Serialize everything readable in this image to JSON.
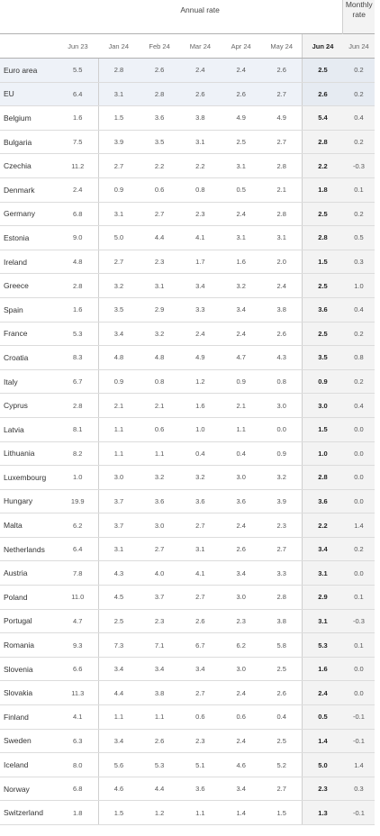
{
  "header": {
    "annual_rate": "Annual rate",
    "monthly_rate": "Monthly rate",
    "columns": [
      "Jun 23",
      "Jan 24",
      "Feb 24",
      "Mar 24",
      "Apr 24",
      "May 24",
      "Jun 24",
      "Jun 24"
    ]
  },
  "rows": [
    {
      "name": "Euro area",
      "vals": [
        "5.5",
        "2.8",
        "2.6",
        "2.4",
        "2.4",
        "2.6",
        "2.5",
        "0.2"
      ]
    },
    {
      "name": "EU",
      "vals": [
        "6.4",
        "3.1",
        "2.8",
        "2.6",
        "2.6",
        "2.7",
        "2.6",
        "0.2"
      ]
    },
    {
      "name": "Belgium",
      "vals": [
        "1.6",
        "1.5",
        "3.6",
        "3.8",
        "4.9",
        "4.9",
        "5.4",
        "0.4"
      ]
    },
    {
      "name": "Bulgaria",
      "vals": [
        "7.5",
        "3.9",
        "3.5",
        "3.1",
        "2.5",
        "2.7",
        "2.8",
        "0.2"
      ]
    },
    {
      "name": "Czechia",
      "vals": [
        "11.2",
        "2.7",
        "2.2",
        "2.2",
        "3.1",
        "2.8",
        "2.2",
        "-0.3"
      ]
    },
    {
      "name": "Denmark",
      "vals": [
        "2.4",
        "0.9",
        "0.6",
        "0.8",
        "0.5",
        "2.1",
        "1.8",
        "0.1"
      ]
    },
    {
      "name": "Germany",
      "vals": [
        "6.8",
        "3.1",
        "2.7",
        "2.3",
        "2.4",
        "2.8",
        "2.5",
        "0.2"
      ]
    },
    {
      "name": "Estonia",
      "vals": [
        "9.0",
        "5.0",
        "4.4",
        "4.1",
        "3.1",
        "3.1",
        "2.8",
        "0.5"
      ]
    },
    {
      "name": "Ireland",
      "vals": [
        "4.8",
        "2.7",
        "2.3",
        "1.7",
        "1.6",
        "2.0",
        "1.5",
        "0.3"
      ]
    },
    {
      "name": "Greece",
      "vals": [
        "2.8",
        "3.2",
        "3.1",
        "3.4",
        "3.2",
        "2.4",
        "2.5",
        "1.0"
      ]
    },
    {
      "name": "Spain",
      "vals": [
        "1.6",
        "3.5",
        "2.9",
        "3.3",
        "3.4",
        "3.8",
        "3.6",
        "0.4"
      ]
    },
    {
      "name": "France",
      "vals": [
        "5.3",
        "3.4",
        "3.2",
        "2.4",
        "2.4",
        "2.6",
        "2.5",
        "0.2"
      ]
    },
    {
      "name": "Croatia",
      "vals": [
        "8.3",
        "4.8",
        "4.8",
        "4.9",
        "4.7",
        "4.3",
        "3.5",
        "0.8"
      ]
    },
    {
      "name": "Italy",
      "vals": [
        "6.7",
        "0.9",
        "0.8",
        "1.2",
        "0.9",
        "0.8",
        "0.9",
        "0.2"
      ]
    },
    {
      "name": "Cyprus",
      "vals": [
        "2.8",
        "2.1",
        "2.1",
        "1.6",
        "2.1",
        "3.0",
        "3.0",
        "0.4"
      ]
    },
    {
      "name": "Latvia",
      "vals": [
        "8.1",
        "1.1",
        "0.6",
        "1.0",
        "1.1",
        "0.0",
        "1.5",
        "0.0"
      ]
    },
    {
      "name": "Lithuania",
      "vals": [
        "8.2",
        "1.1",
        "1.1",
        "0.4",
        "0.4",
        "0.9",
        "1.0",
        "0.0"
      ]
    },
    {
      "name": "Luxembourg",
      "vals": [
        "1.0",
        "3.0",
        "3.2",
        "3.2",
        "3.0",
        "3.2",
        "2.8",
        "0.0"
      ]
    },
    {
      "name": "Hungary",
      "vals": [
        "19.9",
        "3.7",
        "3.6",
        "3.6",
        "3.6",
        "3.9",
        "3.6",
        "0.0"
      ]
    },
    {
      "name": "Malta",
      "vals": [
        "6.2",
        "3.7",
        "3.0",
        "2.7",
        "2.4",
        "2.3",
        "2.2",
        "1.4"
      ]
    },
    {
      "name": "Netherlands",
      "vals": [
        "6.4",
        "3.1",
        "2.7",
        "3.1",
        "2.6",
        "2.7",
        "3.4",
        "0.2"
      ]
    },
    {
      "name": "Austria",
      "vals": [
        "7.8",
        "4.3",
        "4.0",
        "4.1",
        "3.4",
        "3.3",
        "3.1",
        "0.0"
      ]
    },
    {
      "name": "Poland",
      "vals": [
        "11.0",
        "4.5",
        "3.7",
        "2.7",
        "3.0",
        "2.8",
        "2.9",
        "0.1"
      ]
    },
    {
      "name": "Portugal",
      "vals": [
        "4.7",
        "2.5",
        "2.3",
        "2.6",
        "2.3",
        "3.8",
        "3.1",
        "-0.3"
      ]
    },
    {
      "name": "Romania",
      "vals": [
        "9.3",
        "7.3",
        "7.1",
        "6.7",
        "6.2",
        "5.8",
        "5.3",
        "0.1"
      ]
    },
    {
      "name": "Slovenia",
      "vals": [
        "6.6",
        "3.4",
        "3.4",
        "3.4",
        "3.0",
        "2.5",
        "1.6",
        "0.0"
      ]
    },
    {
      "name": "Slovakia",
      "vals": [
        "11.3",
        "4.4",
        "3.8",
        "2.7",
        "2.4",
        "2.6",
        "2.4",
        "0.0"
      ]
    },
    {
      "name": "Finland",
      "vals": [
        "4.1",
        "1.1",
        "1.1",
        "0.6",
        "0.6",
        "0.4",
        "0.5",
        "-0.1"
      ]
    },
    {
      "name": "Sweden",
      "vals": [
        "6.3",
        "3.4",
        "2.6",
        "2.3",
        "2.4",
        "2.5",
        "1.4",
        "-0.1"
      ]
    },
    {
      "name": "Iceland",
      "vals": [
        "8.0",
        "5.6",
        "5.3",
        "5.1",
        "4.6",
        "5.2",
        "5.0",
        "1.4"
      ]
    },
    {
      "name": "Norway",
      "vals": [
        "6.8",
        "4.6",
        "4.4",
        "3.6",
        "3.4",
        "2.7",
        "2.3",
        "0.3"
      ]
    },
    {
      "name": "Switzerland",
      "vals": [
        "1.8",
        "1.5",
        "1.2",
        "1.1",
        "1.4",
        "1.5",
        "1.3",
        "-0.1"
      ]
    }
  ]
}
